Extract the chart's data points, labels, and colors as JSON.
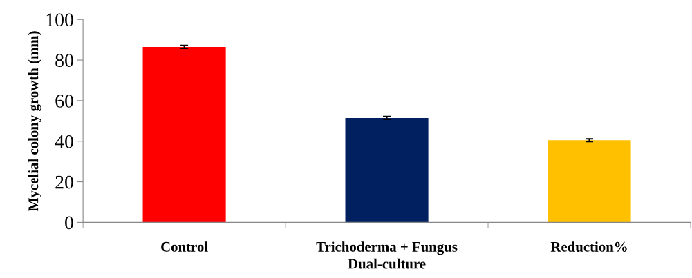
{
  "chart_data": {
    "type": "bar",
    "xlabel": "Dual-culture",
    "ylabel": "Mycelial colony growth (mm)",
    "categories": [
      "Control",
      "Trichoderma + Fungus",
      "Reduction%"
    ],
    "values": [
      86.5,
      51.5,
      40.5
    ],
    "errors": [
      0.7,
      0.7,
      0.7
    ],
    "colors": [
      "#ff0000",
      "#002060",
      "#ffc000"
    ],
    "ylim": [
      0,
      100
    ],
    "yticks": [
      0,
      20,
      40,
      60,
      80,
      100
    ],
    "grid": false
  }
}
